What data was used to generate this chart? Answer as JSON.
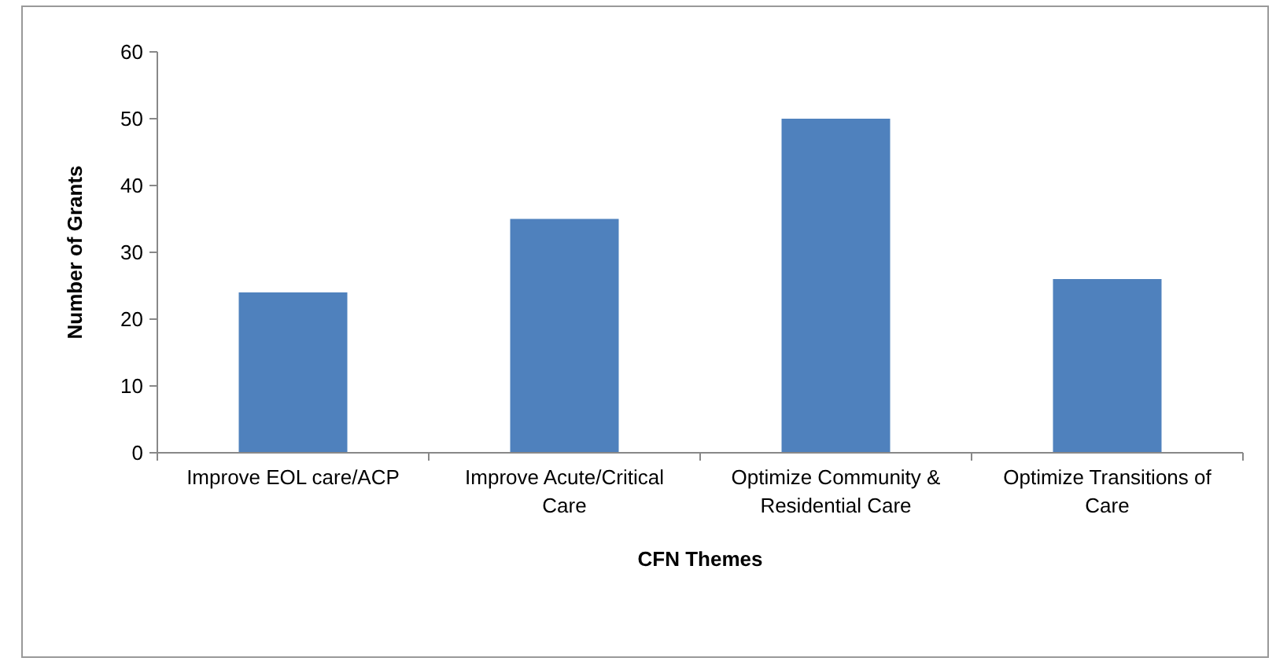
{
  "chart_data": {
    "type": "bar",
    "xlabel": "CFN Themes",
    "ylabel": "Number of Grants",
    "categories": [
      "Improve EOL care/ACP",
      "Improve Acute/Critical Care",
      "Optimize Community & Residential Care",
      "Optimize Transitions of Care"
    ],
    "values": [
      24,
      35,
      50,
      26
    ],
    "color": "#4f81bd",
    "ylim": [
      0,
      60
    ],
    "yticks": [
      0,
      10,
      20,
      30,
      40,
      50,
      60
    ],
    "grid": false
  }
}
